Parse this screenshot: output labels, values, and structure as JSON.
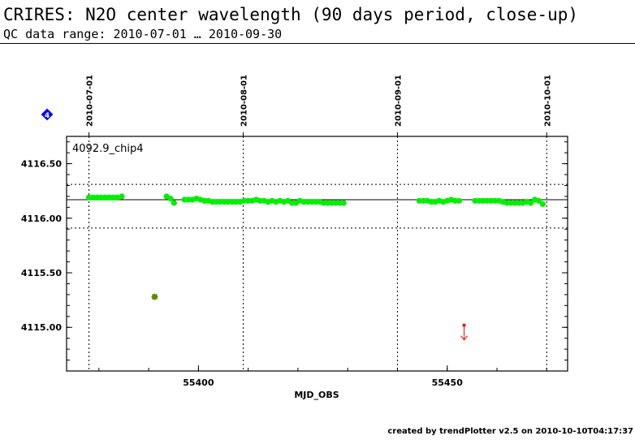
{
  "header": {
    "title": "CRIRES: N2O center wavelength (90 days period, close-up)",
    "subtitle": "QC data range: 2010-07-01 … 2010-09-30"
  },
  "footer": {
    "credit": "created by trendPlotter v2.5 on 2010-10-10T04:17:37"
  },
  "chart_data": {
    "type": "scatter",
    "panel_label": "4092.9_chip4",
    "xlabel": "MJD_OBS",
    "ylabel": "",
    "xlim": [
      55373.5,
      55474.2
    ],
    "ylim": [
      4114.6,
      4116.75
    ],
    "x_ticks": [
      55400,
      55450
    ],
    "y_ticks": [
      4115.0,
      4115.5,
      4116.0,
      4116.5
    ],
    "y_tick_labels": [
      "4115.00",
      "4115.50",
      "4116.00",
      "4116.50"
    ],
    "date_markers": [
      {
        "label": "2010-07-01",
        "x": 55378
      },
      {
        "label": "2010-08-01",
        "x": 55409
      },
      {
        "label": "2010-09-01",
        "x": 55440
      },
      {
        "label": "2010-10-01",
        "x": 55470
      }
    ],
    "reference_line": 4116.17,
    "threshold_lines": [
      4116.31,
      4115.91
    ],
    "series_color": "#00ee00",
    "outlier_color": "#777700",
    "offscale_color": "#ff0000",
    "marker_badge": "4",
    "badge_color": "#0000ff",
    "series": [
      {
        "values": [
          [
            55378.0,
            4116.19
          ],
          [
            55378.8,
            4116.19
          ],
          [
            55379.6,
            4116.19
          ],
          [
            55380.4,
            4116.19
          ],
          [
            55381.2,
            4116.19
          ],
          [
            55382.0,
            4116.19
          ],
          [
            55382.8,
            4116.19
          ],
          [
            55383.6,
            4116.19
          ],
          [
            55384.6,
            4116.2
          ],
          [
            55393.6,
            4116.2
          ],
          [
            55394.4,
            4116.18
          ],
          [
            55395.1,
            4116.14
          ],
          [
            55397.2,
            4116.17
          ],
          [
            55398.0,
            4116.17
          ],
          [
            55398.8,
            4116.17
          ],
          [
            55399.6,
            4116.18
          ],
          [
            55400.4,
            4116.17
          ],
          [
            55401.2,
            4116.16
          ],
          [
            55402.0,
            4116.16
          ],
          [
            55402.8,
            4116.15
          ],
          [
            55403.6,
            4116.15
          ],
          [
            55404.4,
            4116.15
          ],
          [
            55405.2,
            4116.15
          ],
          [
            55406.0,
            4116.15
          ],
          [
            55406.8,
            4116.15
          ],
          [
            55407.6,
            4116.15
          ],
          [
            55408.4,
            4116.15
          ],
          [
            55409.2,
            4116.16
          ],
          [
            55410.0,
            4116.16
          ],
          [
            55410.8,
            4116.16
          ],
          [
            55411.6,
            4116.17
          ],
          [
            55412.4,
            4116.16
          ],
          [
            55413.2,
            4116.16
          ],
          [
            55414.0,
            4116.15
          ],
          [
            55414.8,
            4116.16
          ],
          [
            55415.6,
            4116.15
          ],
          [
            55416.4,
            4116.16
          ],
          [
            55417.2,
            4116.15
          ],
          [
            55418.0,
            4116.16
          ],
          [
            55418.8,
            4116.14
          ],
          [
            55419.6,
            4116.14
          ],
          [
            55420.4,
            4116.16
          ],
          [
            55421.2,
            4116.15
          ],
          [
            55422.0,
            4116.15
          ],
          [
            55422.8,
            4116.15
          ],
          [
            55423.6,
            4116.15
          ],
          [
            55424.4,
            4116.15
          ],
          [
            55425.2,
            4116.14
          ],
          [
            55426.0,
            4116.14
          ],
          [
            55426.8,
            4116.14
          ],
          [
            55427.6,
            4116.14
          ],
          [
            55428.4,
            4116.14
          ],
          [
            55429.2,
            4116.14
          ],
          [
            55444.4,
            4116.16
          ],
          [
            55445.2,
            4116.16
          ],
          [
            55446.0,
            4116.16
          ],
          [
            55446.8,
            4116.15
          ],
          [
            55447.6,
            4116.15
          ],
          [
            55448.4,
            4116.16
          ],
          [
            55449.2,
            4116.15
          ],
          [
            55450.0,
            4116.16
          ],
          [
            55450.8,
            4116.17
          ],
          [
            55451.6,
            4116.16
          ],
          [
            55452.4,
            4116.16
          ],
          [
            55455.6,
            4116.16
          ],
          [
            55456.4,
            4116.16
          ],
          [
            55457.2,
            4116.16
          ],
          [
            55458.0,
            4116.16
          ],
          [
            55458.8,
            4116.16
          ],
          [
            55459.6,
            4116.16
          ],
          [
            55460.4,
            4116.16
          ],
          [
            55461.2,
            4116.15
          ],
          [
            55462.0,
            4116.14
          ],
          [
            55462.8,
            4116.14
          ],
          [
            55463.6,
            4116.14
          ],
          [
            55464.4,
            4116.14
          ],
          [
            55465.2,
            4116.14
          ],
          [
            55466.0,
            4116.15
          ],
          [
            55466.8,
            4116.14
          ],
          [
            55467.6,
            4116.17
          ],
          [
            55468.4,
            4116.16
          ],
          [
            55469.2,
            4116.13
          ]
        ]
      }
    ],
    "outliers": [
      [
        55391.2,
        4115.28
      ]
    ],
    "offscale": [
      [
        55453.4,
        4114.93
      ]
    ]
  }
}
